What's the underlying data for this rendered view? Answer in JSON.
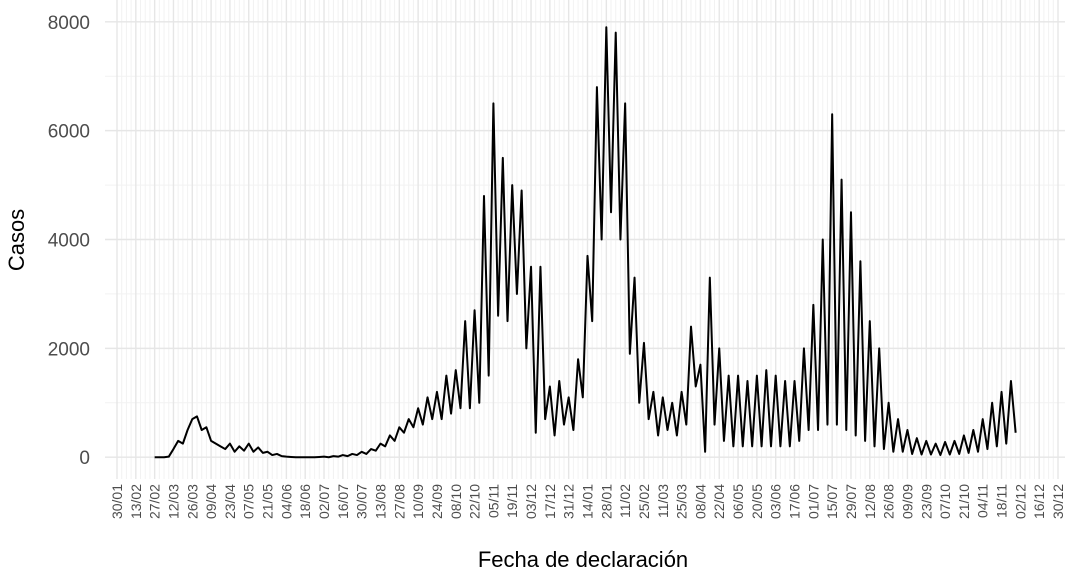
{
  "chart_data": {
    "type": "line",
    "x_label": "Fecha de declaración",
    "y_label": "Casos",
    "categories": [
      "30/01",
      null,
      null,
      null,
      "13/02",
      null,
      null,
      null,
      "27/02",
      null,
      null,
      null,
      "12/03",
      null,
      null,
      null,
      "26/03",
      null,
      null,
      null,
      "09/04",
      null,
      null,
      null,
      "23/04",
      null,
      null,
      null,
      "07/05",
      null,
      null,
      null,
      "21/05",
      null,
      null,
      null,
      "04/06",
      null,
      null,
      null,
      "18/06",
      null,
      null,
      null,
      "02/07",
      null,
      null,
      null,
      "16/07",
      null,
      null,
      null,
      "30/07",
      null,
      null,
      null,
      "13/08",
      null,
      null,
      null,
      "27/08",
      null,
      null,
      null,
      "10/09",
      null,
      null,
      null,
      "24/09",
      null,
      null,
      null,
      "08/10",
      null,
      null,
      null,
      "22/10",
      null,
      null,
      null,
      "05/11",
      null,
      null,
      null,
      "19/11",
      null,
      null,
      null,
      "03/12",
      null,
      null,
      null,
      "17/12",
      null,
      null,
      null,
      "31/12",
      null,
      null,
      null,
      "14/01",
      null,
      null,
      null,
      "28/01",
      null,
      null,
      null,
      "11/02",
      null,
      null,
      null,
      "25/02",
      null,
      null,
      null,
      "11/03",
      null,
      null,
      null,
      "25/03",
      null,
      null,
      null,
      "08/04",
      null,
      null,
      null,
      "22/04",
      null,
      null,
      null,
      "06/05",
      null,
      null,
      null,
      "20/05",
      null,
      null,
      null,
      "03/06",
      null,
      null,
      null,
      "17/06",
      null,
      null,
      null,
      "01/07",
      null,
      null,
      null,
      "15/07",
      null,
      null,
      null,
      "29/07",
      null,
      null,
      null,
      "12/08",
      null,
      null,
      null,
      "26/08",
      null,
      null,
      null,
      "09/09",
      null,
      null,
      null,
      "23/09",
      null,
      null,
      null,
      "07/10",
      null,
      null,
      null,
      "21/10",
      null,
      null,
      null,
      "04/11",
      null,
      null,
      null,
      "18/11",
      null,
      null,
      null,
      "02/12",
      null,
      null,
      null,
      "16/12",
      null,
      null,
      null,
      "30/12"
    ],
    "series": [
      {
        "name": "Casos",
        "color": "#000000",
        "values": [
          null,
          null,
          null,
          null,
          null,
          null,
          null,
          null,
          0,
          0,
          0,
          10,
          150,
          300,
          250,
          500,
          700,
          750,
          500,
          550,
          300,
          250,
          200,
          150,
          250,
          100,
          200,
          120,
          250,
          100,
          180,
          80,
          100,
          40,
          60,
          20,
          10,
          5,
          0,
          0,
          0,
          0,
          0,
          5,
          10,
          0,
          20,
          10,
          40,
          20,
          60,
          40,
          100,
          60,
          150,
          120,
          250,
          200,
          400,
          300,
          550,
          450,
          700,
          550,
          900,
          600,
          1100,
          700,
          1200,
          700,
          1500,
          800,
          1600,
          900,
          2500,
          900,
          2700,
          1000,
          4800,
          1500,
          6500,
          2600,
          5500,
          2500,
          5000,
          3000,
          4900,
          2000,
          3500,
          450,
          3500,
          700,
          1300,
          400,
          1400,
          600,
          1100,
          500,
          1800,
          1100,
          3700,
          2500,
          6800,
          4000,
          7900,
          4500,
          7800,
          4000,
          6500,
          1900,
          3300,
          1000,
          2100,
          700,
          1200,
          400,
          1100,
          500,
          1000,
          400,
          1200,
          600,
          2400,
          1300,
          1700,
          100,
          3300,
          600,
          2000,
          300,
          1500,
          200,
          1500,
          200,
          1400,
          200,
          1500,
          200,
          1600,
          200,
          1500,
          200,
          1400,
          200,
          1400,
          300,
          2000,
          500,
          2800,
          500,
          4000,
          600,
          6300,
          600,
          5100,
          500,
          4500,
          400,
          3600,
          300,
          2500,
          200,
          2000,
          150,
          1000,
          100,
          700,
          100,
          500,
          60,
          350,
          50,
          300,
          50,
          250,
          40,
          280,
          50,
          300,
          60,
          400,
          80,
          500,
          100,
          700,
          150,
          1000,
          200,
          1200,
          250,
          1400,
          450,
          null,
          null,
          null,
          null,
          null,
          null,
          null,
          null,
          null
        ]
      }
    ],
    "ylim": [
      -400,
      8400
    ],
    "yticks": [
      0,
      2000,
      4000,
      6000,
      8000
    ],
    "grid": true
  }
}
